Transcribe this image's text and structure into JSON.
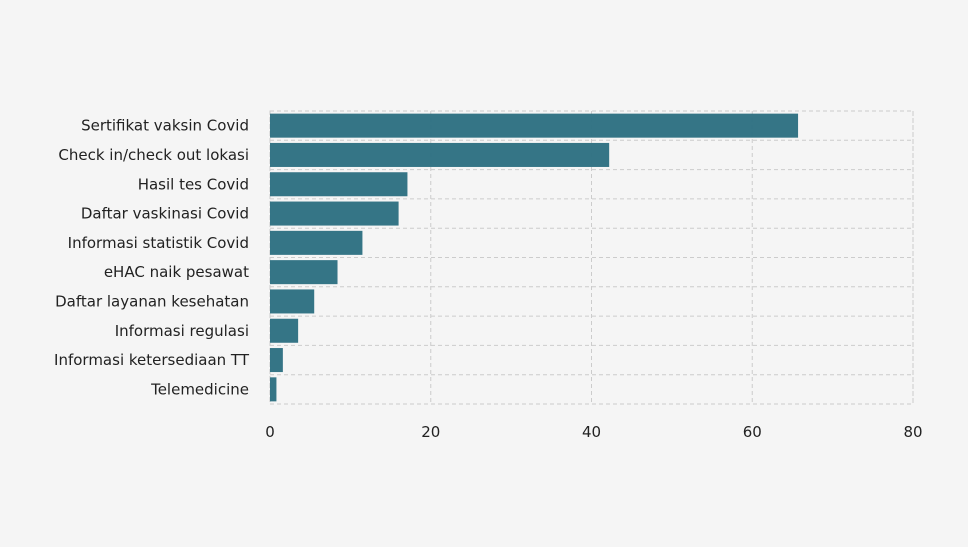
{
  "chart_data": {
    "type": "bar",
    "orientation": "horizontal",
    "title": "",
    "xlabel": "",
    "ylabel": "",
    "categories": [
      "Sertifikat vaksin Covid",
      "Check in/check out lokasi",
      "Hasil tes Covid",
      "Daftar vaskinasi Covid",
      "Informasi statistik Covid",
      "eHAC naik pesawat",
      "Daftar layanan kesehatan",
      "Informasi regulasi",
      "Informasi ketersediaan TT",
      "Telemedicine"
    ],
    "values": [
      65.7,
      42.2,
      17.1,
      16.0,
      11.5,
      8.4,
      5.5,
      3.5,
      1.6,
      0.8
    ],
    "xlim": [
      0,
      80
    ],
    "xticks": [
      "0",
      "20",
      "40",
      "60",
      "80"
    ],
    "xtick_values": [
      0,
      20,
      40,
      60,
      80
    ],
    "grid": true,
    "legend": "none",
    "colors": {
      "bar": "#2e7182",
      "grid": "#cccccc",
      "background": "#f5f5f5"
    }
  }
}
